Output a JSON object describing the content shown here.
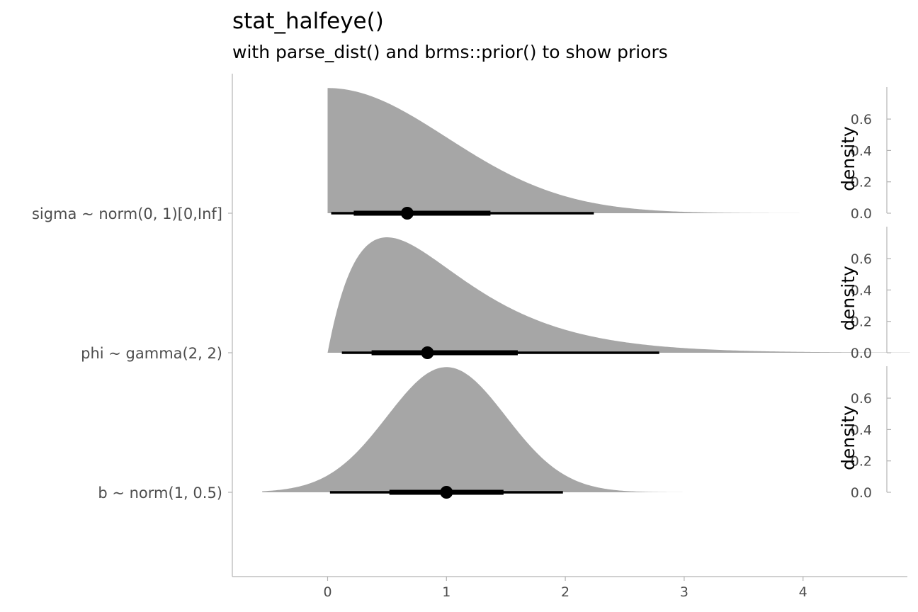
{
  "chart_data": {
    "type": "halfeye",
    "title": "stat_halfeye()",
    "subtitle": "with parse_dist() and brms::prior() to show priors",
    "xlim": [
      -0.8,
      4.9
    ],
    "x_ticks": [
      0,
      1,
      2,
      3,
      4
    ],
    "density_axis": {
      "label": "density",
      "range": [
        0,
        0.8
      ],
      "ticks": [
        "0.0",
        "0.2",
        "0.4",
        "0.6"
      ]
    },
    "grid": false,
    "colors": {
      "slab": "#a6a6a6",
      "interval": "#000000",
      "axis": "#b3b3b3",
      "tick_text": "#4d4d4d"
    },
    "series": [
      {
        "name": "sigma ~ norm(0, 1)[0,Inf]",
        "dist": "halfnormal",
        "params": {
          "mu": 0,
          "sigma": 1
        },
        "support": [
          0,
          4.1
        ],
        "point": 0.67,
        "interval_66": [
          0.22,
          1.37
        ],
        "interval_95": [
          0.03,
          2.24
        ]
      },
      {
        "name": "phi ~ gamma(2, 2)",
        "dist": "gamma",
        "params": {
          "shape": 2,
          "rate": 2
        },
        "support": [
          0,
          4.9
        ],
        "point": 0.84,
        "interval_66": [
          0.37,
          1.6
        ],
        "interval_95": [
          0.12,
          2.79
        ]
      },
      {
        "name": "b ~ norm(1, 0.5)",
        "dist": "normal",
        "params": {
          "mu": 1,
          "sigma": 0.5
        },
        "support": [
          -0.55,
          3.1
        ],
        "point": 1.0,
        "interval_66": [
          0.52,
          1.48
        ],
        "interval_95": [
          0.02,
          1.98
        ]
      }
    ]
  }
}
